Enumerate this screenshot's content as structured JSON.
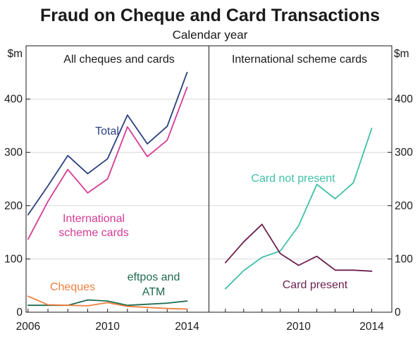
{
  "title_top_fragment": "",
  "title": "Fraud on Cheque and Card Transactions",
  "subtitle": "Calendar year",
  "chart_data": [
    {
      "type": "line",
      "panel_title": "All cheques and cards",
      "ylabel": "$m",
      "ylim": [
        0,
        500
      ],
      "yticks": [
        0,
        100,
        200,
        300,
        400
      ],
      "x": [
        2006,
        2007,
        2008,
        2009,
        2010,
        2011,
        2012,
        2013,
        2014
      ],
      "xticks": [
        2006,
        2010,
        2014
      ],
      "xlim": [
        2005.9,
        2015.1
      ],
      "grid": true,
      "series": [
        {
          "name": "Total",
          "color": "#2b3f7f",
          "values": [
            183,
            237,
            294,
            260,
            288,
            370,
            316,
            349,
            450
          ]
        },
        {
          "name": "International scheme cards",
          "color": "#d63b94",
          "values": [
            137,
            208,
            268,
            224,
            250,
            348,
            292,
            323,
            422
          ]
        },
        {
          "name": "eftpos and ATM",
          "color": "#1f6b4e",
          "values": [
            13,
            13,
            13,
            23,
            21,
            13,
            15,
            17,
            21
          ]
        },
        {
          "name": "Cheques",
          "color": "#f07f3d",
          "values": [
            30,
            14,
            13,
            12,
            18,
            11,
            9,
            7,
            6
          ]
        }
      ]
    },
    {
      "type": "line",
      "panel_title": "International scheme cards",
      "ylabel": "$m",
      "ylim": [
        0,
        500
      ],
      "yticks": [
        0,
        100,
        200,
        300,
        400
      ],
      "x": [
        2006,
        2007,
        2008,
        2009,
        2010,
        2011,
        2012,
        2013,
        2014
      ],
      "xticks": [
        2010,
        2014
      ],
      "xlim": [
        2005.1,
        2015.1
      ],
      "grid": true,
      "series": [
        {
          "name": "Card not present",
          "color": "#3fbfa8",
          "values": [
            44,
            78,
            103,
            115,
            162,
            240,
            213,
            243,
            345
          ]
        },
        {
          "name": "Card present",
          "color": "#6b1f4f",
          "values": [
            93,
            132,
            165,
            110,
            88,
            105,
            79,
            79,
            77
          ]
        }
      ]
    }
  ]
}
